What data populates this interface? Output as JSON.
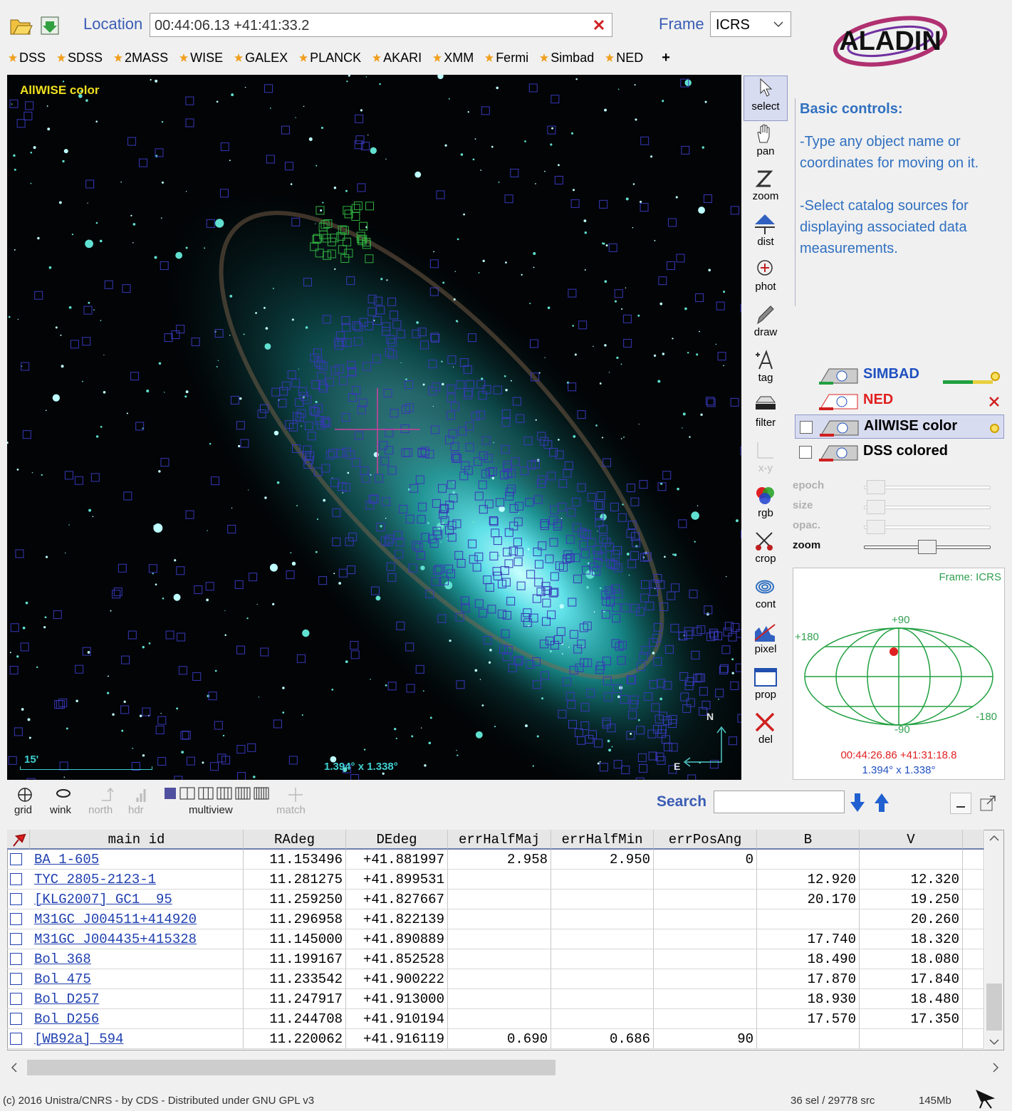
{
  "toolbar": {
    "location_label": "Location",
    "location_value": "00:44:06.13 +41:41:33.2",
    "frame_label": "Frame",
    "frame_value": "ICRS",
    "logo": "ALADIN"
  },
  "surveys": [
    "DSS",
    "SDSS",
    "2MASS",
    "WISE",
    "GALEX",
    "PLANCK",
    "AKARI",
    "XMM",
    "Fermi",
    "Simbad",
    "NED"
  ],
  "add_survey": "+",
  "view": {
    "label": "AllWISE color",
    "scale": "15'",
    "fov": "1.394° x 1.338°",
    "north": "N",
    "east": "E"
  },
  "tools": [
    "select",
    "pan",
    "zoom",
    "dist",
    "phot",
    "draw",
    "tag",
    "filter",
    "x-y",
    "rgb",
    "crop",
    "cont",
    "pixel",
    "prop",
    "del"
  ],
  "help": {
    "title": "Basic controls:",
    "paragraphs": [
      "-Type any object name or coordinates for moving on it.",
      "-Select catalog sources for displaying associated data measurements."
    ]
  },
  "layers": [
    "SIMBAD",
    "NED",
    "AllWISE color",
    "DSS colored"
  ],
  "sliders": [
    "epoch",
    "size",
    "opac.",
    "zoom"
  ],
  "minimap": {
    "frame": "Frame: ICRS",
    "top": "+90",
    "left": "+180",
    "right": "-180",
    "bottom": "-90",
    "coords": "00:44:26.86 +41:31:18.8",
    "fov": "1.394° x 1.338°"
  },
  "view_tools": [
    "grid",
    "wink",
    "north",
    "hdr",
    "multiview",
    "match"
  ],
  "search_label": "Search",
  "table": {
    "columns": [
      "main id",
      "RAdeg",
      "DEdeg",
      "errHalfMaj",
      "errHalfMin",
      "errPosAng",
      "B",
      "V"
    ],
    "rows": [
      [
        "BA 1-605",
        "11.153496",
        "+41.881997",
        "2.958",
        "2.950",
        "0",
        null,
        null
      ],
      [
        "TYC 2805-2123-1",
        "11.281275",
        "+41.899531",
        null,
        null,
        null,
        "12.920",
        "12.320"
      ],
      [
        "[KLG2007] GC1  95",
        "11.259250",
        "+41.827667",
        null,
        null,
        null,
        "20.170",
        "19.250"
      ],
      [
        "M31GC J004511+414920",
        "11.296958",
        "+41.822139",
        null,
        null,
        null,
        null,
        "20.260"
      ],
      [
        "M31GC J004435+415328",
        "11.145000",
        "+41.890889",
        null,
        null,
        null,
        "17.740",
        "18.320"
      ],
      [
        "Bol 368",
        "11.199167",
        "+41.852528",
        null,
        null,
        null,
        "18.490",
        "18.080"
      ],
      [
        "Bol 475",
        "11.233542",
        "+41.900222",
        null,
        null,
        null,
        "17.870",
        "17.840"
      ],
      [
        "Bol D257",
        "11.247917",
        "+41.913000",
        null,
        null,
        null,
        "18.930",
        "18.480"
      ],
      [
        "Bol D256",
        "11.244708",
        "+41.910194",
        null,
        null,
        null,
        "17.570",
        "17.350"
      ],
      [
        "[WB92a] 594",
        "11.220062",
        "+41.916119",
        "0.690",
        "0.686",
        "90",
        null,
        null
      ]
    ]
  },
  "footer": {
    "copyright": "(c) 2016 Unistra/CNRS - by CDS - Distributed under GNU GPL v3",
    "status": "36 sel / 29778 src",
    "memory": "145Mb"
  }
}
